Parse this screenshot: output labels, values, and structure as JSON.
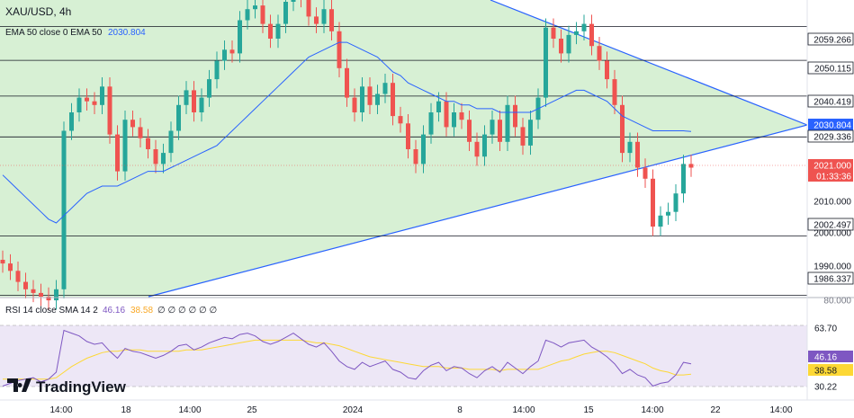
{
  "header": {
    "symbol": "XAU/USD, 4h",
    "indicator_label": "EMA 50 close 0 EMA 50",
    "indicator_value": "2030.804"
  },
  "rsi_header": {
    "label": "RSI 14 close SMA 14 2",
    "rsi_value": "46.16",
    "sma_value": "38.58",
    "extra": "∅ ∅ ∅ ∅ ∅ ∅"
  },
  "logo": {
    "text": "TradingView"
  },
  "colors": {
    "bull": "#26a69a",
    "bear": "#ef5350",
    "triangle_fill": "#d7f0d4",
    "line_blue": "#2962ff",
    "rsi_band": "#ede7f6",
    "rsi_line": "#7e57c2",
    "rsi_sma": "#fdd835"
  },
  "chart_data": {
    "type": "candlestick",
    "price_axis_labels": [
      "2059.266",
      "2050.115",
      "2040.419",
      "2030.804",
      "2029.336",
      "2021.000",
      "01:33:36",
      "2010.000",
      "2002.497",
      "2000.000",
      "1990.000",
      "1986.337",
      "80.000"
    ],
    "price_levels": [
      2059.266,
      2050.115,
      2040.419,
      2029.336,
      2002.497,
      1986.337
    ],
    "current_price": "2021.000",
    "countdown": "01:33:36",
    "ema_last": "2030.804",
    "ylim": [
      1985,
      2065
    ],
    "x_tick_labels": [
      "14:00",
      "18",
      "14:00",
      "25",
      "2024",
      "8",
      "14:00",
      "15",
      "14:00",
      "22",
      "14:00"
    ],
    "rsi_axis_labels": [
      "63.70",
      "46.16",
      "38.58",
      "30.22"
    ],
    "closes": [
      1995,
      1993,
      1990,
      1988,
      1987,
      1986,
      1985,
      1988,
      2031,
      2036,
      2040,
      2039,
      2038,
      2043,
      2030,
      2020,
      2034,
      2032,
      2029,
      2026,
      2022,
      2025,
      2031,
      2038,
      2042,
      2036,
      2040,
      2045,
      2050,
      2053,
      2052,
      2061,
      2064,
      2065,
      2060,
      2056,
      2060,
      2066,
      2070,
      2067,
      2062,
      2060,
      2064,
      2058,
      2048,
      2040,
      2036,
      2043,
      2038,
      2041,
      2044,
      2035,
      2033,
      2026,
      2022,
      2030,
      2036,
      2039,
      2032,
      2036,
      2034,
      2028,
      2024,
      2030,
      2034,
      2028,
      2038,
      2032,
      2027,
      2034,
      2040,
      2059,
      2056,
      2052,
      2057,
      2058,
      2060,
      2054,
      2050,
      2045,
      2038,
      2025,
      2028,
      2021,
      2018,
      2005,
      2008,
      2009,
      2014,
      2022,
      2021
    ],
    "ema": [
      2019,
      2017,
      2015,
      2013,
      2011,
      2009,
      2007,
      2006,
      2008,
      2010,
      2012,
      2014,
      2015,
      2016,
      2016,
      2016,
      2017,
      2018,
      2019,
      2020,
      2020,
      2020,
      2021,
      2022,
      2023,
      2024,
      2025,
      2026,
      2027,
      2029,
      2031,
      2033,
      2035,
      2037,
      2039,
      2041,
      2043,
      2045,
      2047,
      2049,
      2051,
      2052,
      2053,
      2054,
      2055,
      2055,
      2054,
      2053,
      2052,
      2051,
      2049,
      2047,
      2046,
      2044,
      2043,
      2042,
      2041,
      2040,
      2039,
      2039,
      2038,
      2038,
      2037,
      2037,
      2037,
      2036,
      2036,
      2036,
      2036,
      2036,
      2037,
      2038,
      2039,
      2040,
      2041,
      2042,
      2042,
      2041,
      2040,
      2039,
      2037,
      2035,
      2034,
      2033,
      2032,
      2031,
      2031,
      2031,
      2031,
      2031,
      2030.8
    ],
    "rsi": [
      30,
      32,
      34,
      35,
      36,
      33,
      35,
      40,
      70,
      68,
      66,
      62,
      60,
      61,
      55,
      50,
      57,
      55,
      54,
      52,
      50,
      52,
      55,
      59,
      60,
      56,
      58,
      61,
      63,
      65,
      64,
      67,
      68,
      66,
      62,
      60,
      62,
      65,
      68,
      64,
      60,
      58,
      61,
      55,
      48,
      44,
      42,
      47,
      44,
      46,
      48,
      42,
      40,
      36,
      35,
      41,
      45,
      47,
      41,
      44,
      43,
      39,
      36,
      41,
      44,
      40,
      47,
      43,
      39,
      44,
      48,
      63,
      61,
      58,
      61,
      62,
      63,
      58,
      55,
      51,
      46,
      39,
      42,
      38,
      36,
      30,
      32,
      33,
      38,
      47,
      46
    ],
    "rsi_sma": [
      35,
      35,
      35,
      35,
      35,
      35,
      35,
      36,
      40,
      44,
      47,
      50,
      52,
      54,
      55,
      55,
      56,
      56,
      56,
      55,
      55,
      55,
      55,
      55,
      56,
      56,
      56,
      57,
      58,
      59,
      60,
      61,
      62,
      63,
      63,
      63,
      63,
      63,
      63,
      63,
      62,
      61,
      61,
      60,
      59,
      57,
      55,
      53,
      51,
      50,
      49,
      48,
      47,
      46,
      45,
      44,
      44,
      44,
      43,
      43,
      43,
      42,
      42,
      42,
      42,
      41,
      42,
      42,
      42,
      42,
      42,
      44,
      46,
      48,
      49,
      51,
      53,
      54,
      55,
      55,
      54,
      52,
      50,
      48,
      46,
      43,
      41,
      40,
      38,
      38,
      38.58
    ]
  }
}
